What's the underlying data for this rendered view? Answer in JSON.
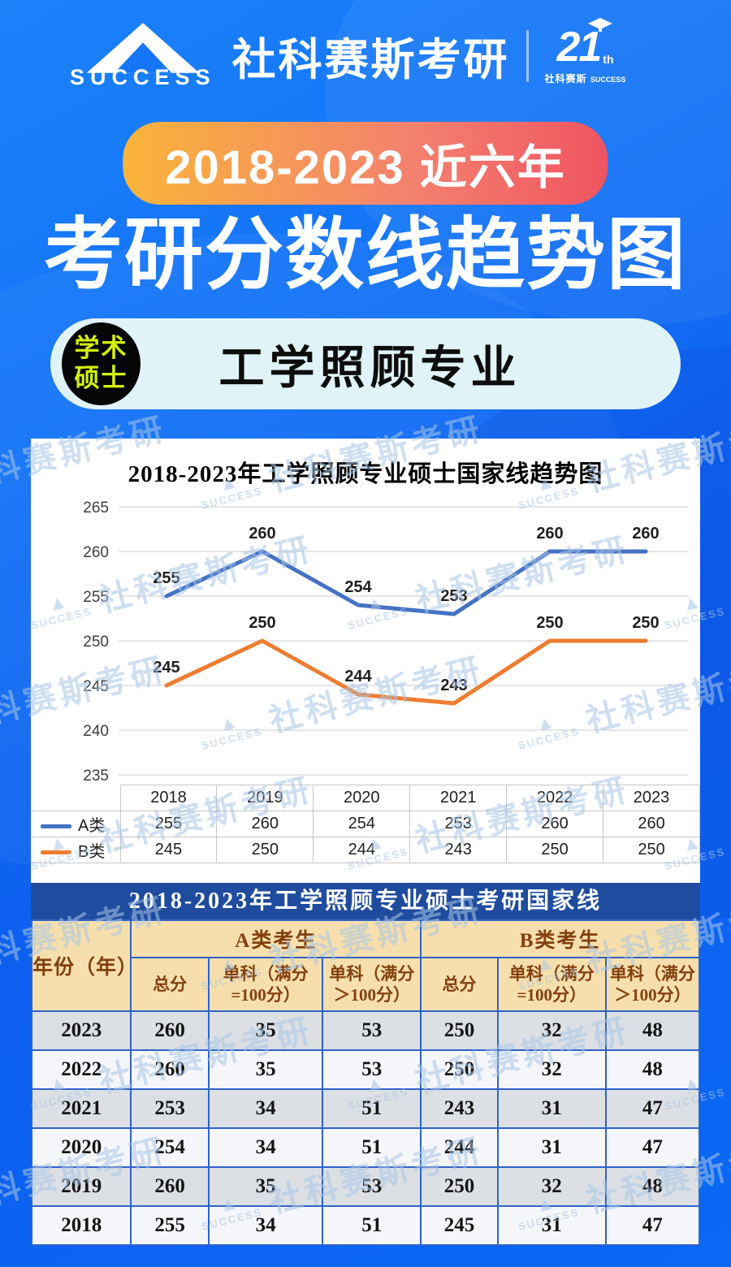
{
  "header": {
    "brand_name": "社科赛斯考研",
    "brand_sub": "SUCCESS",
    "anniversary": "21",
    "anniversary_suffix": "th",
    "anniversary_brand": "社科赛斯",
    "anniversary_sub": "SUCCESS"
  },
  "hero": {
    "badge": "2018-2023 近六年",
    "title": "考研分数线趋势图"
  },
  "subject": {
    "tag_line1": "学术",
    "tag_line2": "硕士",
    "name": "工学照顾专业"
  },
  "chart_data": {
    "type": "line",
    "title": "2018-2023年工学照顾专业硕士国家线趋势图",
    "x": [
      "2018",
      "2019",
      "2020",
      "2021",
      "2022",
      "2023"
    ],
    "series": [
      {
        "name": "A类",
        "color": "#4472C4",
        "values": [
          255,
          260,
          254,
          253,
          260,
          260
        ]
      },
      {
        "name": "B类",
        "color": "#ED7D31",
        "values": [
          245,
          250,
          244,
          243,
          250,
          250
        ]
      }
    ],
    "ylim": [
      235,
      265
    ],
    "ytick_step": 5,
    "grid": true,
    "legend_position": "table-left",
    "xlabel": "",
    "ylabel": ""
  },
  "summary_table": {
    "title": "2018-2023年工学照顾专业硕士考研国家线",
    "col_year": "年份（年）",
    "group_a": "A类考生",
    "group_b": "B类考生",
    "sub_headers": [
      "总分",
      "单科（满分\n=100分）",
      "单科（满分\n＞100分）"
    ],
    "rows": [
      [
        "2023",
        260,
        35,
        53,
        250,
        32,
        48
      ],
      [
        "2022",
        260,
        35,
        53,
        250,
        32,
        48
      ],
      [
        "2021",
        253,
        34,
        51,
        243,
        31,
        47
      ],
      [
        "2020",
        254,
        34,
        51,
        244,
        31,
        47
      ],
      [
        "2019",
        260,
        35,
        53,
        250,
        32,
        48
      ],
      [
        "2018",
        255,
        34,
        51,
        245,
        31,
        47
      ]
    ]
  },
  "watermark": {
    "text": "社科赛斯考研",
    "sub": "SUCCESS"
  }
}
